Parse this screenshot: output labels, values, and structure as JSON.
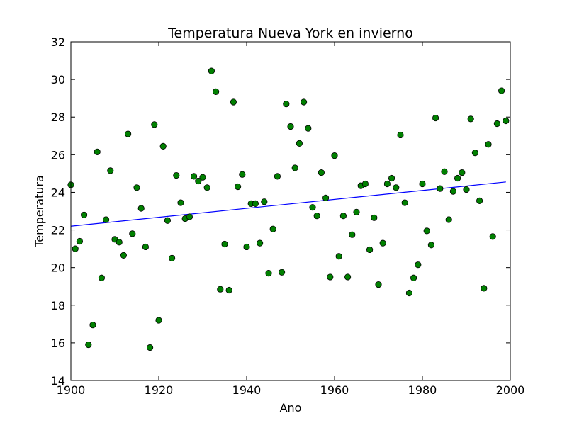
{
  "chart_data": {
    "type": "scatter",
    "title": "Temperatura Nueva York en invierno",
    "xlabel": "Ano",
    "ylabel": "Temperatura",
    "xlim": [
      1900,
      2000
    ],
    "ylim": [
      14,
      32
    ],
    "grid": false,
    "x_ticks": [
      "1900",
      "1920",
      "1940",
      "1960",
      "1980",
      "2000"
    ],
    "y_ticks": [
      "14",
      "16",
      "18",
      "20",
      "22",
      "24",
      "26",
      "28",
      "30",
      "32"
    ],
    "colors": {
      "points": "#008000",
      "point_edge": "#000000",
      "trend": "#0000ff"
    },
    "series": [
      {
        "points": [
          [
            1900,
            24.4
          ],
          [
            1901,
            21.0
          ],
          [
            1902,
            21.4
          ],
          [
            1903,
            22.8
          ],
          [
            1904,
            15.9
          ],
          [
            1905,
            16.95
          ],
          [
            1906,
            26.15
          ],
          [
            1907,
            19.45
          ],
          [
            1908,
            22.55
          ],
          [
            1909,
            25.15
          ],
          [
            1910,
            21.5
          ],
          [
            1911,
            21.35
          ],
          [
            1912,
            20.65
          ],
          [
            1913,
            27.1
          ],
          [
            1914,
            21.8
          ],
          [
            1915,
            24.25
          ],
          [
            1916,
            23.15
          ],
          [
            1917,
            21.1
          ],
          [
            1918,
            15.75
          ],
          [
            1919,
            27.6
          ],
          [
            1920,
            17.2
          ],
          [
            1921,
            26.45
          ],
          [
            1922,
            22.5
          ],
          [
            1923,
            20.5
          ],
          [
            1924,
            24.9
          ],
          [
            1925,
            23.45
          ],
          [
            1926,
            22.6
          ],
          [
            1927,
            22.7
          ],
          [
            1928,
            24.85
          ],
          [
            1929,
            24.6
          ],
          [
            1930,
            24.8
          ],
          [
            1931,
            24.25
          ],
          [
            1932,
            30.45
          ],
          [
            1933,
            29.35
          ],
          [
            1934,
            18.85
          ],
          [
            1935,
            21.25
          ],
          [
            1936,
            18.8
          ],
          [
            1937,
            28.8
          ],
          [
            1938,
            24.3
          ],
          [
            1939,
            24.95
          ],
          [
            1940,
            21.1
          ],
          [
            1941,
            23.4
          ],
          [
            1942,
            23.4
          ],
          [
            1943,
            21.3
          ],
          [
            1944,
            23.5
          ],
          [
            1945,
            19.7
          ],
          [
            1946,
            22.05
          ],
          [
            1947,
            24.85
          ],
          [
            1948,
            19.75
          ],
          [
            1949,
            28.7
          ],
          [
            1950,
            27.5
          ],
          [
            1951,
            25.3
          ],
          [
            1952,
            26.6
          ],
          [
            1953,
            28.8
          ],
          [
            1954,
            27.4
          ],
          [
            1955,
            23.2
          ],
          [
            1956,
            22.75
          ],
          [
            1957,
            25.05
          ],
          [
            1958,
            23.7
          ],
          [
            1959,
            19.5
          ],
          [
            1960,
            25.95
          ],
          [
            1961,
            20.6
          ],
          [
            1962,
            22.75
          ],
          [
            1963,
            19.5
          ],
          [
            1964,
            21.75
          ],
          [
            1965,
            22.95
          ],
          [
            1966,
            24.35
          ],
          [
            1967,
            24.45
          ],
          [
            1968,
            20.95
          ],
          [
            1969,
            22.65
          ],
          [
            1970,
            19.1
          ],
          [
            1971,
            21.3
          ],
          [
            1972,
            24.45
          ],
          [
            1973,
            24.75
          ],
          [
            1974,
            24.25
          ],
          [
            1975,
            27.05
          ],
          [
            1976,
            23.45
          ],
          [
            1977,
            18.65
          ],
          [
            1978,
            19.45
          ],
          [
            1979,
            20.15
          ],
          [
            1980,
            24.45
          ],
          [
            1981,
            21.95
          ],
          [
            1982,
            21.2
          ],
          [
            1983,
            27.95
          ],
          [
            1984,
            24.2
          ],
          [
            1985,
            25.1
          ],
          [
            1986,
            22.55
          ],
          [
            1987,
            24.05
          ],
          [
            1988,
            24.75
          ],
          [
            1989,
            25.05
          ],
          [
            1990,
            24.15
          ],
          [
            1991,
            27.9
          ],
          [
            1992,
            26.1
          ],
          [
            1993,
            23.55
          ],
          [
            1994,
            18.9
          ],
          [
            1995,
            26.55
          ],
          [
            1996,
            21.65
          ],
          [
            1997,
            27.65
          ],
          [
            1998,
            29.4
          ],
          [
            1999,
            27.8
          ]
        ]
      }
    ],
    "trend_line": {
      "x": [
        1900,
        1999
      ],
      "y": [
        22.2,
        24.55
      ]
    }
  }
}
